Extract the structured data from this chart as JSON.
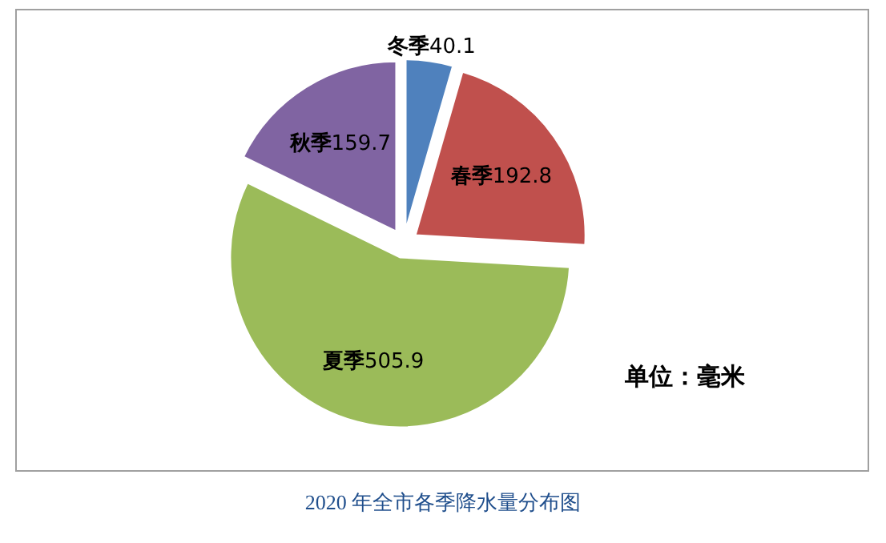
{
  "chart_data": {
    "type": "pie",
    "title": "2020 年全市各季降水量分布图",
    "categories": [
      "冬季",
      "春季",
      "夏季",
      "秋季"
    ],
    "values": [
      40.1,
      192.8,
      505.9,
      159.7
    ],
    "colors": [
      "#4f81bd",
      "#c0504d",
      "#9bbb59",
      "#8064a2"
    ],
    "data_labels": true,
    "annotations": [
      "单位：毫米"
    ]
  }
}
